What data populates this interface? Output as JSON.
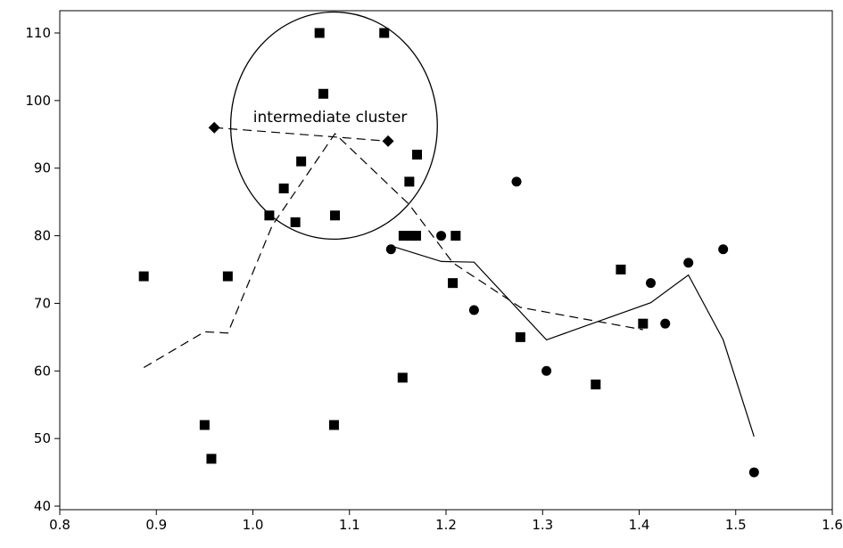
{
  "chart_data": {
    "type": "scatter",
    "title": "",
    "xlabel": "",
    "ylabel": "",
    "xlim": [
      0.8,
      1.6
    ],
    "ylim": [
      40,
      110
    ],
    "xticks": [
      "0.8",
      "0.9",
      "1.0",
      "1.1",
      "1.2",
      "1.3",
      "1.4",
      "1.5",
      "1.6"
    ],
    "yticks": [
      "40",
      "50",
      "60",
      "70",
      "80",
      "90",
      "100",
      "110"
    ],
    "grid": false,
    "legend": "none",
    "series": [
      {
        "marker": "square",
        "color": "#000000",
        "points": [
          [
            0.887,
            74
          ],
          [
            0.95,
            52
          ],
          [
            0.957,
            47
          ],
          [
            0.974,
            74
          ],
          [
            1.017,
            83
          ],
          [
            1.032,
            87
          ],
          [
            1.044,
            82
          ],
          [
            1.05,
            91
          ],
          [
            1.069,
            110
          ],
          [
            1.073,
            101
          ],
          [
            1.084,
            52
          ],
          [
            1.085,
            83
          ],
          [
            1.136,
            110
          ],
          [
            1.155,
            59
          ],
          [
            1.156,
            80
          ],
          [
            1.162,
            88
          ],
          [
            1.164,
            80
          ],
          [
            1.169,
            80
          ],
          [
            1.17,
            92
          ],
          [
            1.207,
            73
          ],
          [
            1.21,
            80
          ],
          [
            1.277,
            65
          ],
          [
            1.355,
            58
          ],
          [
            1.381,
            75
          ],
          [
            1.404,
            67
          ]
        ]
      },
      {
        "marker": "circle",
        "color": "#000000",
        "points": [
          [
            1.143,
            78
          ],
          [
            1.195,
            80
          ],
          [
            1.229,
            69
          ],
          [
            1.273,
            88
          ],
          [
            1.304,
            60
          ],
          [
            1.412,
            73
          ],
          [
            1.427,
            67
          ],
          [
            1.451,
            76
          ],
          [
            1.487,
            78
          ],
          [
            1.519,
            45
          ]
        ]
      },
      {
        "marker": "diamond",
        "color": "#000000",
        "points": [
          [
            0.96,
            96
          ],
          [
            1.14,
            94
          ]
        ]
      },
      {
        "line": "dashed",
        "color": "#000000",
        "points": [
          [
            0.887,
            60.5
          ],
          [
            0.95,
            65.8
          ],
          [
            0.974,
            65.6
          ],
          [
            1.02,
            81.5
          ],
          [
            1.085,
            95.1
          ],
          [
            1.162,
            84.6
          ],
          [
            1.207,
            76.0
          ],
          [
            1.277,
            69.4
          ],
          [
            1.404,
            66.1
          ]
        ]
      },
      {
        "line": "solid",
        "color": "#000000",
        "points": [
          [
            1.143,
            78.5
          ],
          [
            1.195,
            76.2
          ],
          [
            1.229,
            76.1
          ],
          [
            1.304,
            64.6
          ],
          [
            1.412,
            70.1
          ],
          [
            1.451,
            74.2
          ],
          [
            1.487,
            64.6
          ],
          [
            1.519,
            50.3
          ]
        ]
      },
      {
        "line": "dashed",
        "color": "#000000",
        "points": [
          [
            0.96,
            96
          ],
          [
            1.14,
            94
          ]
        ]
      }
    ],
    "annotations": [
      {
        "text": "intermediate cluster",
        "x": 1.08,
        "y": 96.8,
        "circle": {
          "cx": 1.084,
          "cy": 96.3,
          "rx": 0.107,
          "ry": 16.8
        }
      }
    ]
  }
}
